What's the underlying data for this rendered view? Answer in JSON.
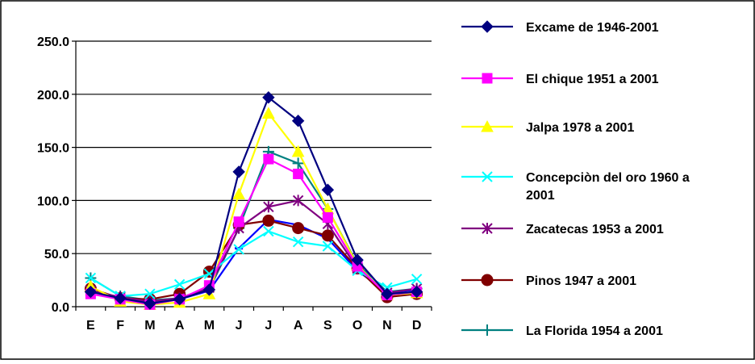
{
  "chart_data": {
    "type": "line",
    "title": "",
    "xlabel": "",
    "ylabel": "",
    "categories": [
      "E",
      "F",
      "M",
      "A",
      "M",
      "J",
      "J",
      "A",
      "S",
      "O",
      "N",
      "D"
    ],
    "ylim": [
      0,
      250
    ],
    "yticks": [
      0,
      50,
      100,
      150,
      200,
      250
    ],
    "ytick_labels": [
      "0.0",
      "50.0",
      "100.0",
      "150.0",
      "200.0",
      "250.0"
    ],
    "grid": "horizontal",
    "legend_position": "right",
    "series": [
      {
        "name": "Excame de 1946-2001",
        "color": "#000080",
        "marker": "diamond",
        "values": [
          14,
          8,
          3,
          7,
          16,
          127,
          197,
          175,
          110,
          44,
          12,
          14
        ]
      },
      {
        "name": "El chique 1951 a 2001",
        "color": "#FF00FF",
        "marker": "square",
        "values": [
          12,
          7,
          2,
          7,
          20,
          80,
          139,
          125,
          84,
          38,
          11,
          14
        ]
      },
      {
        "name": "Jalpa 1978 a 2001",
        "color": "#FFFF00",
        "marker": "triangle",
        "values": [
          19,
          5,
          2,
          4,
          12,
          106,
          182,
          146,
          92,
          39,
          11,
          13
        ]
      },
      {
        "name": "Concepciòn del oro 1960 a 2001",
        "color": "#00FFFF",
        "marker": "x",
        "values": [
          27,
          10,
          12,
          21,
          31,
          54,
          71,
          61,
          57,
          34,
          18,
          26
        ]
      },
      {
        "name": "Zacatecas 1953 a 2001",
        "color": "#800080",
        "marker": "asterisk",
        "values": [
          15,
          9,
          5,
          8,
          18,
          74,
          94,
          100,
          78,
          36,
          13,
          17
        ]
      },
      {
        "name": "Pinos 1947 a 2001",
        "color": "#800000",
        "marker": "circle",
        "values": [
          17,
          8,
          7,
          12,
          33,
          77,
          81,
          74,
          67,
          36,
          9,
          12
        ]
      },
      {
        "name": "La Florida 1954 a 2001",
        "color": "#008080",
        "marker": "plus",
        "values": [
          27,
          10,
          6,
          8,
          16,
          74,
          146,
          135,
          92,
          40,
          14,
          17
        ]
      },
      {
        "name": "",
        "color": "#0000FF",
        "marker": "none",
        "values": [
          15,
          8,
          4,
          7,
          15,
          55,
          82,
          77,
          64,
          34,
          13,
          16
        ]
      }
    ]
  }
}
